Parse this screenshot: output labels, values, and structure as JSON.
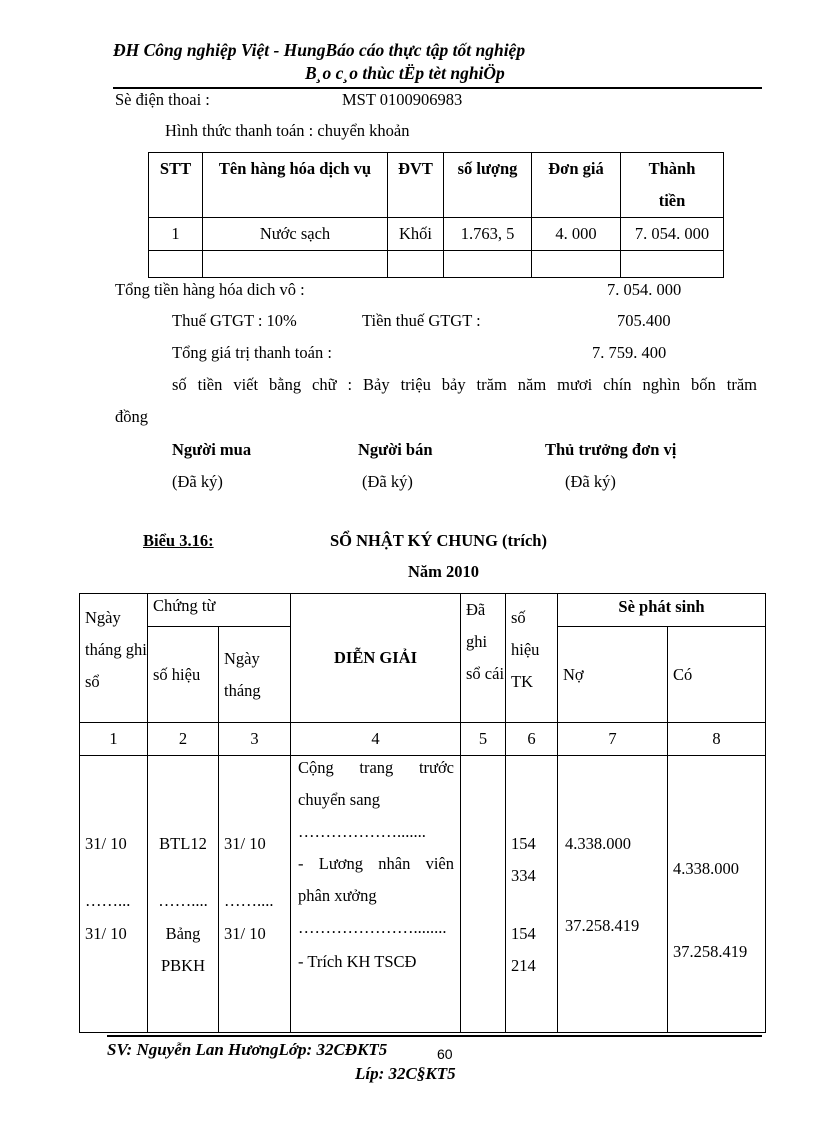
{
  "header": {
    "line1": "ĐH Công nghiệp Việt - HungBáo cáo thực tập tốt nghiệp",
    "line2": "B¸o c¸o thùc tËp tèt nghiÖp"
  },
  "invoice": {
    "phone_label": "Sè điện thoai :",
    "tax_code": "MST 0100906983",
    "payment": "Hình thức thanh toán : chuyển khoản",
    "table": {
      "headers": [
        "STT",
        "Tên hàng hóa dịch vụ",
        "ĐVT",
        "số lượng",
        "Đơn giá",
        "Thành tiền"
      ],
      "rows": [
        [
          "1",
          "Nước sạch",
          "Khối",
          "1.763, 5",
          "4. 000",
          "7. 054. 000"
        ],
        [
          "",
          "",
          "",
          "",
          "",
          ""
        ]
      ]
    },
    "subtotal_label": "Tổng tiền hàng hóa dich vô :",
    "subtotal_value": "7. 054. 000",
    "vat_rate": "Thuế GTGT : 10%",
    "vat_label": "Tiền thuế GTGT :",
    "vat_value": "705.400",
    "total_label": "Tổng giá trị thanh toán :",
    "total_value": "7. 759. 400",
    "in_words": "số tiền viết bằng chữ : Bảy triệu bảy trăm năm mươi chín nghìn bốn trăm",
    "in_words_cont": "đồng",
    "signers": [
      {
        "role": "Người mua",
        "status": "(Đã ký)"
      },
      {
        "role": "Người bán",
        "status": "(Đã ký)"
      },
      {
        "role": "Thủ trưởng đơn vị",
        "status": "(Đã ký)"
      }
    ]
  },
  "journal": {
    "label": "Biểu 3.16:",
    "title": "SỔ NHẬT KÝ CHUNG (trích)",
    "year": "Năm 2010",
    "headers": {
      "date": "Ngày tháng ghi sổ",
      "voucher": "Chứng từ",
      "voucher_no": "số hiệu",
      "voucher_date": "Ngày tháng",
      "desc": "DIỄN GIẢI",
      "posted": "Đã ghi sổ cái",
      "account": "số hiệu TK",
      "amount": "Sè phát sinh",
      "debit": "Nợ",
      "credit": "Có"
    },
    "col_numbers": [
      "1",
      "2",
      "3",
      "4",
      "5",
      "6",
      "7",
      "8"
    ],
    "body": {
      "dates": [
        "31/ 10",
        "……...",
        "31/ 10"
      ],
      "voucher_nos": [
        "BTL12",
        "……....",
        "Bảng",
        "PBKH"
      ],
      "voucher_dates": [
        "31/ 10",
        "……....",
        "31/ 10"
      ],
      "desc": [
        "Cộng trang trước",
        "chuyển sang",
        "……………….......",
        "- Lương nhân viên",
        "phân xưởng",
        "…………………........",
        "- Trích KH TSCĐ"
      ],
      "accounts": [
        "154",
        "334",
        "154",
        "214"
      ],
      "debits": [
        "4.338.000",
        "37.258.419"
      ],
      "credits": [
        "4.338.000",
        "37.258.419"
      ]
    }
  },
  "footer": {
    "student": "SV: Nguyễn Lan HươngLớp: 32CĐKT5",
    "page": "60",
    "class": "Líp: 32C§KT5"
  }
}
